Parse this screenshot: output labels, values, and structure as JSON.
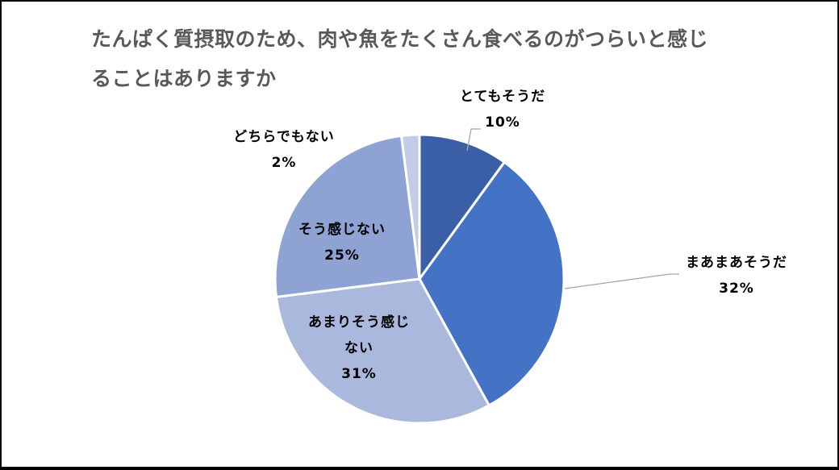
{
  "chart_data": {
    "type": "pie",
    "title": "たんぱく質摂取のため、肉や魚をたくさん食べるのがつらいと感じることはありますか",
    "title_lines": [
      "たんぱく質摂取のため、肉や魚をたくさん食べるのがつらいと感じ",
      "ることはありますか"
    ],
    "start_angle": "12 o'clock",
    "direction": "clockwise",
    "slices": [
      {
        "label": "とてもそうだ",
        "value": 10,
        "display": "10%",
        "color": "#3A5FA6"
      },
      {
        "label": "まあまあそうだ",
        "value": 32,
        "display": "32%",
        "color": "#4472C4"
      },
      {
        "label": "あまりそう感じない",
        "value": 31,
        "display": "31%",
        "color": "#A9B8DC"
      },
      {
        "label": "そう感じない",
        "value": 25,
        "display": "25%",
        "color": "#8FA2D4"
      },
      {
        "label": "どちらでもない",
        "value": 2,
        "display": "2%",
        "color": "#C3CCE6"
      }
    ],
    "legend": "none (data labels)"
  },
  "labels": {
    "s0": {
      "name": "とてもそうだ",
      "pct": "10%"
    },
    "s1": {
      "name": "まあまあそうだ",
      "pct": "32%"
    },
    "s2": {
      "name1": "あまりそう感じ",
      "name2": "ない",
      "pct": "31%"
    },
    "s3": {
      "name": "そう感じない",
      "pct": "25%"
    },
    "s4": {
      "name": "どちらでもない",
      "pct": "2%"
    }
  }
}
